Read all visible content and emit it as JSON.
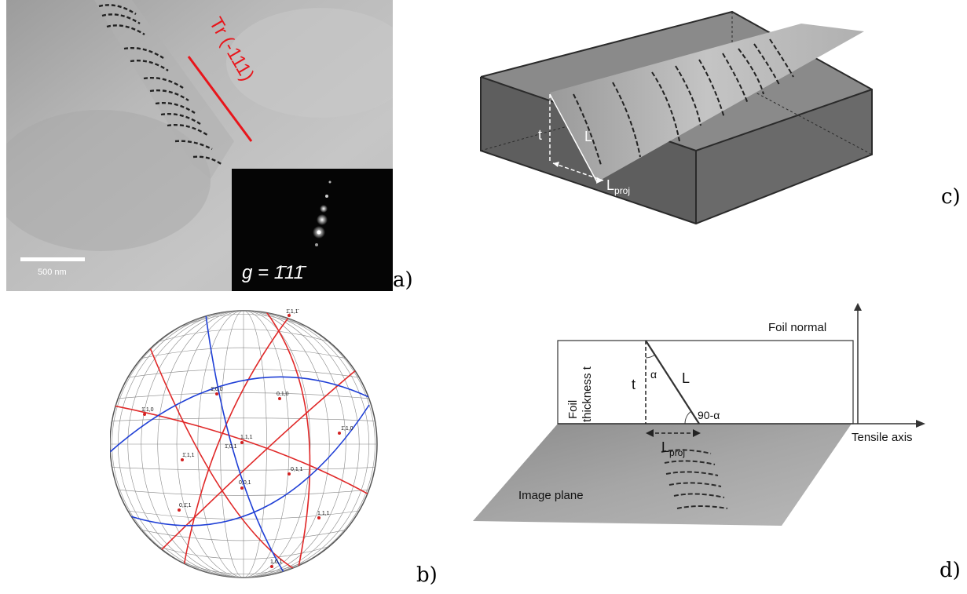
{
  "panels": {
    "a": {
      "label": "a)",
      "trace_label": "Tr (-111)",
      "scale_bar": "500 nm",
      "inset_g": "g = 1̄11̄"
    },
    "b": {
      "label": "b)",
      "poles": [
        {
          "text": "1̄,1,1̄"
        },
        {
          "text": "1̄,0,0"
        },
        {
          "text": "1̄,1,0"
        },
        {
          "text": "0,1,0"
        },
        {
          "text": "1̄,1,0"
        },
        {
          "text": "1,1,1"
        },
        {
          "text": "1̄,0,1"
        },
        {
          "text": "1̄,1,1"
        },
        {
          "text": "0,1,1"
        },
        {
          "text": "0,0,1"
        },
        {
          "text": "0,1̄,1"
        },
        {
          "text": "1,1,1"
        },
        {
          "text": "1,0,1"
        }
      ]
    },
    "c": {
      "label": "c)",
      "t_label": "t",
      "L_label": "L",
      "Lproj_main": "L",
      "Lproj_sub": "proj"
    },
    "d": {
      "label": "d)",
      "foil_normal": "Foil normal",
      "foil_thickness_line1": "Foil",
      "foil_thickness_line2": "thickness t",
      "t_label": "t",
      "alpha_label": "α",
      "L_label": "L",
      "angle_label": "90-α",
      "tensile_axis": "Tensile axis",
      "Lproj_main": "L",
      "Lproj_sub": "proj",
      "image_plane": "Image plane"
    }
  },
  "colors": {
    "trace_red": "#e8151b",
    "pole_red": "#d32020",
    "great_circle_red": "#e02828",
    "great_circle_blue": "#1f3fd6",
    "box_gray": "#666666"
  }
}
